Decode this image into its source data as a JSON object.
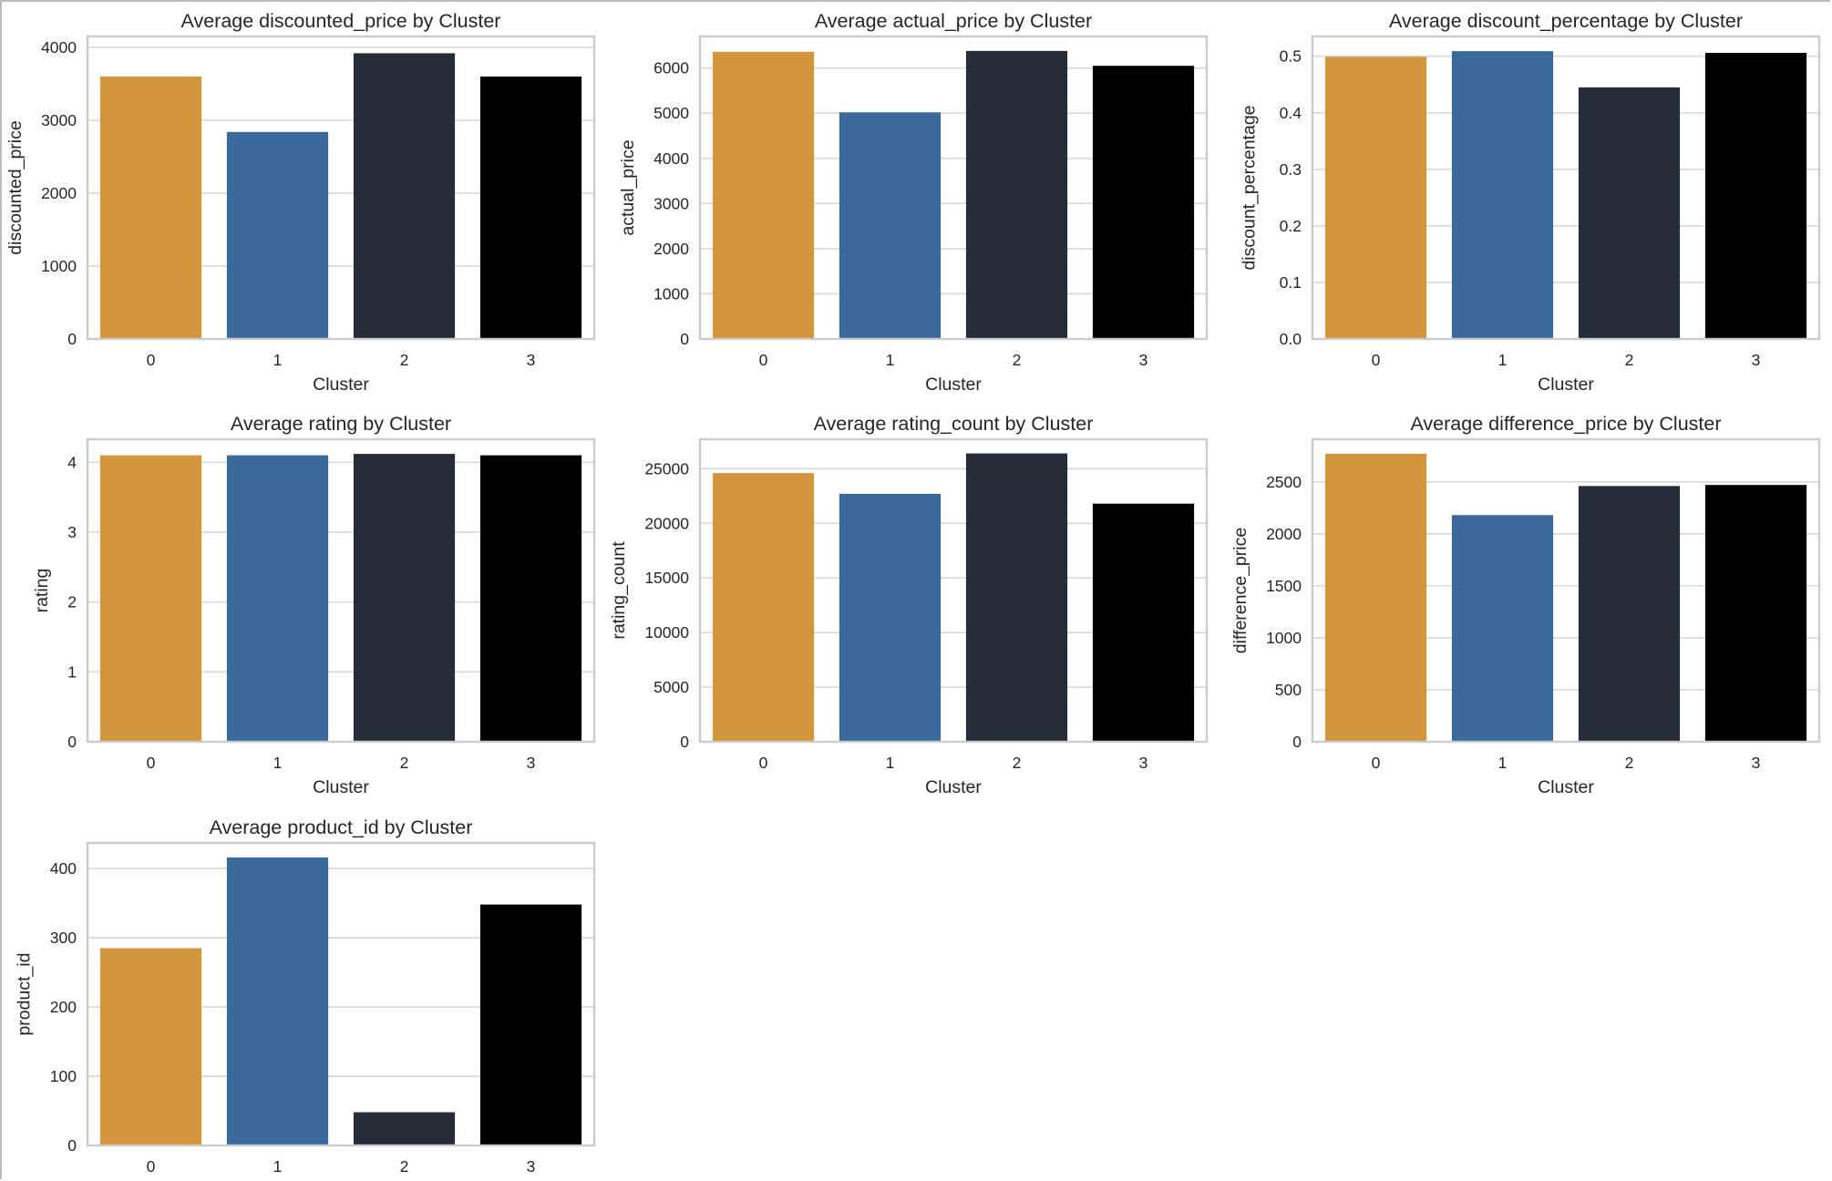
{
  "chart_data": [
    {
      "type": "bar",
      "title": "Average discounted_price by Cluster",
      "xlabel": "Cluster",
      "ylabel": "discounted_price",
      "categories": [
        "0",
        "1",
        "2",
        "3"
      ],
      "values": [
        3600,
        2840,
        3920,
        3600
      ],
      "ylim": [
        0,
        4150
      ],
      "yticks": [
        0,
        1000,
        2000,
        3000,
        4000
      ],
      "ytick_labels": [
        "0",
        "1000",
        "2000",
        "3000",
        "4000"
      ]
    },
    {
      "type": "bar",
      "title": "Average actual_price by Cluster",
      "xlabel": "Cluster",
      "ylabel": "actual_price",
      "categories": [
        "0",
        "1",
        "2",
        "3"
      ],
      "values": [
        6360,
        5020,
        6380,
        6050
      ],
      "ylim": [
        0,
        6700
      ],
      "yticks": [
        0,
        1000,
        2000,
        3000,
        4000,
        5000,
        6000
      ],
      "ytick_labels": [
        "0",
        "1000",
        "2000",
        "3000",
        "4000",
        "5000",
        "6000"
      ]
    },
    {
      "type": "bar",
      "title": "Average discount_percentage by Cluster",
      "xlabel": "Cluster",
      "ylabel": "discount_percentage",
      "categories": [
        "0",
        "1",
        "2",
        "3"
      ],
      "values": [
        0.499,
        0.509,
        0.445,
        0.506
      ],
      "ylim": [
        0,
        0.535
      ],
      "yticks": [
        0,
        0.1,
        0.2,
        0.3,
        0.4,
        0.5
      ],
      "ytick_labels": [
        "0.0",
        "0.1",
        "0.2",
        "0.3",
        "0.4",
        "0.5"
      ]
    },
    {
      "type": "bar",
      "title": "Average rating by Cluster",
      "xlabel": "Cluster",
      "ylabel": "rating",
      "categories": [
        "0",
        "1",
        "2",
        "3"
      ],
      "values": [
        4.1,
        4.1,
        4.12,
        4.1
      ],
      "ylim": [
        0,
        4.33
      ],
      "yticks": [
        0,
        1,
        2,
        3,
        4
      ],
      "ytick_labels": [
        "0",
        "1",
        "2",
        "3",
        "4"
      ]
    },
    {
      "type": "bar",
      "title": "Average rating_count by Cluster",
      "xlabel": "Cluster",
      "ylabel": "rating_count",
      "categories": [
        "0",
        "1",
        "2",
        "3"
      ],
      "values": [
        24600,
        22700,
        26400,
        21800
      ],
      "ylim": [
        0,
        27700
      ],
      "yticks": [
        0,
        5000,
        10000,
        15000,
        20000,
        25000
      ],
      "ytick_labels": [
        "0",
        "5000",
        "10000",
        "15000",
        "20000",
        "25000"
      ]
    },
    {
      "type": "bar",
      "title": "Average difference_price by Cluster",
      "xlabel": "Cluster",
      "ylabel": "difference_price",
      "categories": [
        "0",
        "1",
        "2",
        "3"
      ],
      "values": [
        2770,
        2180,
        2460,
        2470
      ],
      "ylim": [
        0,
        2910
      ],
      "yticks": [
        0,
        500,
        1000,
        1500,
        2000,
        2500
      ],
      "ytick_labels": [
        "0",
        "500",
        "1000",
        "1500",
        "2000",
        "2500"
      ]
    },
    {
      "type": "bar",
      "title": "Average product_id by Cluster",
      "xlabel": "Cluster",
      "ylabel": "product_id",
      "categories": [
        "0",
        "1",
        "2",
        "3"
      ],
      "values": [
        285,
        416,
        48,
        348
      ],
      "ylim": [
        0,
        437
      ],
      "yticks": [
        0,
        100,
        200,
        300,
        400
      ],
      "ytick_labels": [
        "0",
        "100",
        "200",
        "300",
        "400"
      ]
    }
  ],
  "colors": [
    "#d4953d",
    "#3a6a9c",
    "#272d38",
    "#000000"
  ],
  "grid": "horizontal"
}
